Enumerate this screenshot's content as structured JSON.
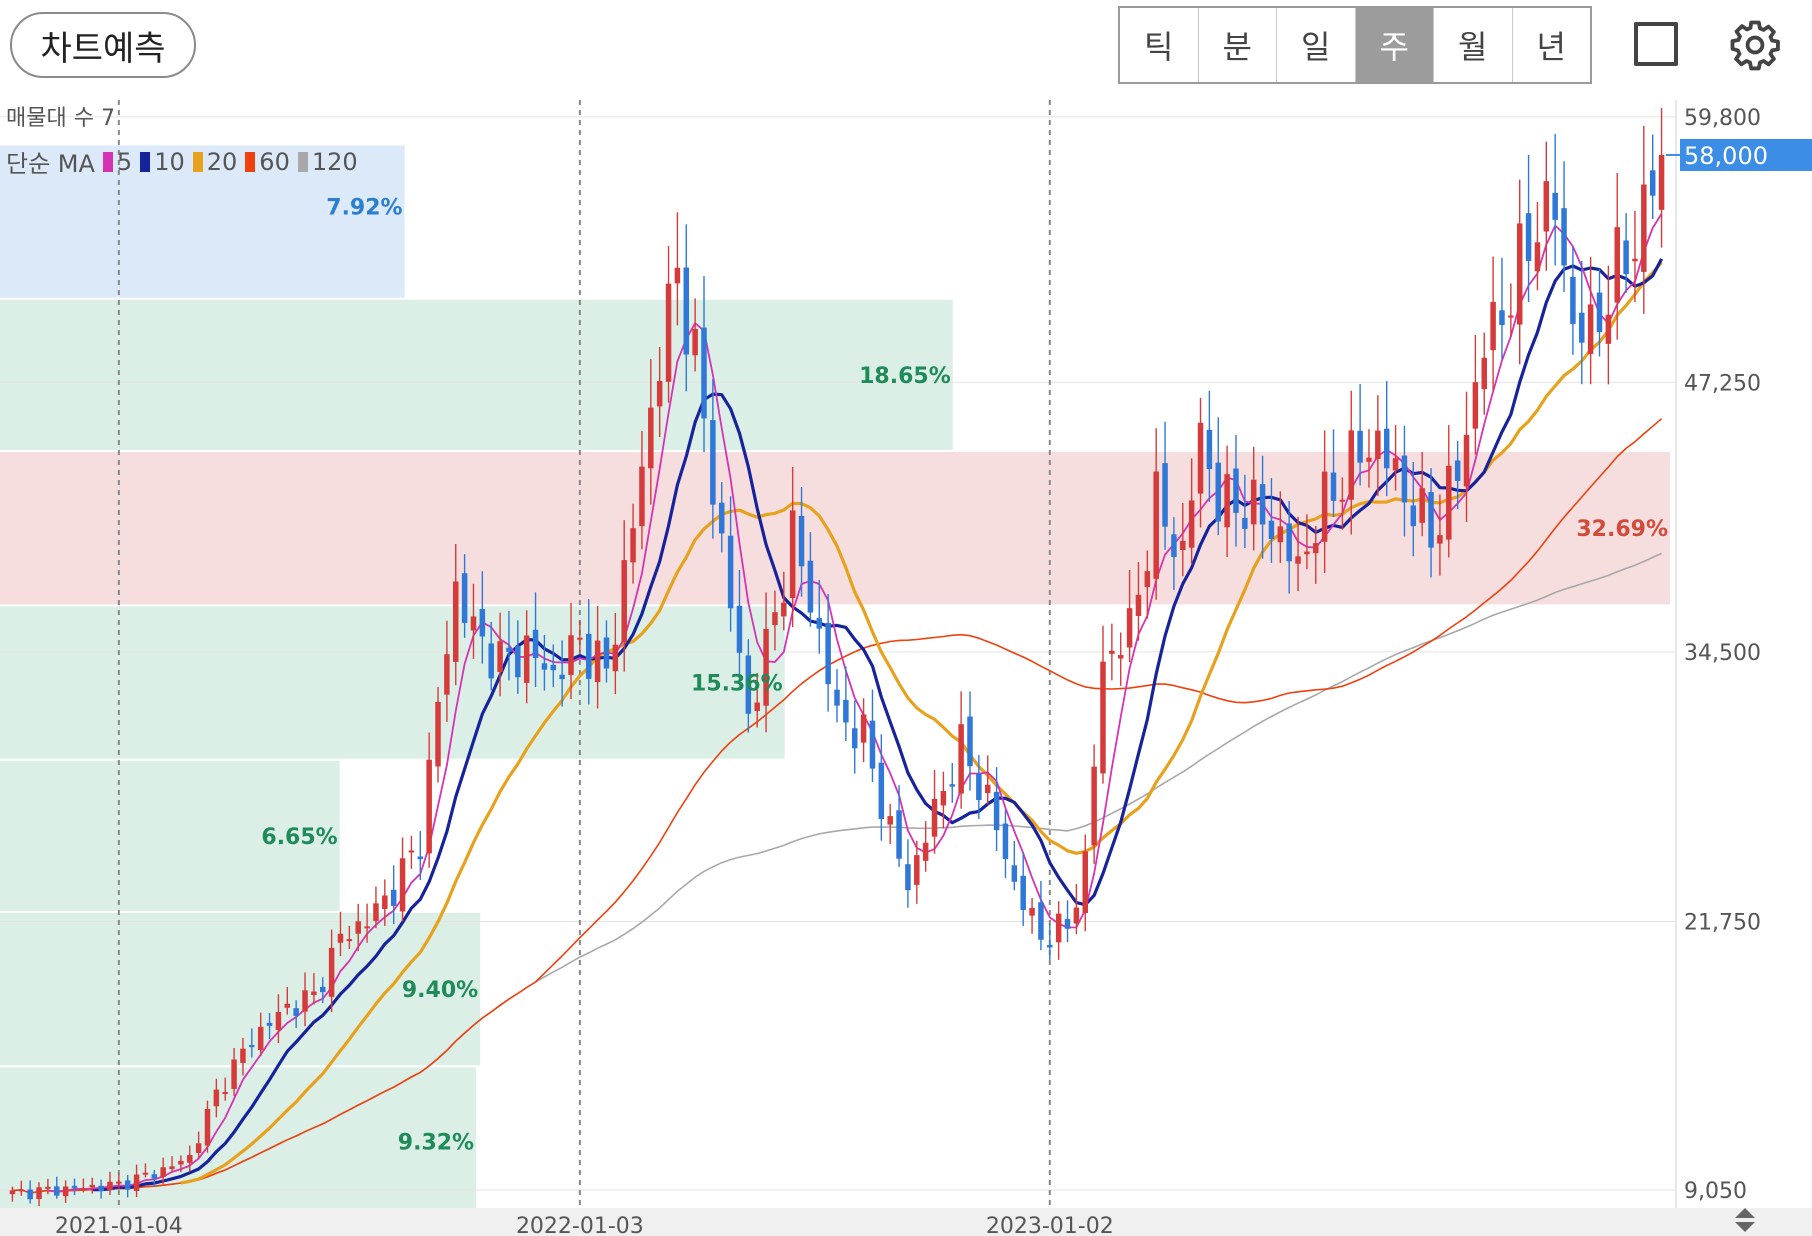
{
  "toolbar": {
    "predict_label": "차트예측",
    "periods": [
      "틱",
      "분",
      "일",
      "주",
      "월",
      "년"
    ],
    "active_period": "주",
    "icons": [
      "square-icon",
      "gear-icon"
    ]
  },
  "legend": {
    "volume_profile_label": "매물대 수 7",
    "ma_label": "단순 MA",
    "ma_periods": [
      {
        "period": "5",
        "color": "#d632b4"
      },
      {
        "period": "10",
        "color": "#17239b"
      },
      {
        "period": "20",
        "color": "#e8a11c"
      },
      {
        "period": "60",
        "color": "#f0400d"
      },
      {
        "period": "120",
        "color": "#a8a8a8"
      }
    ]
  },
  "colors": {
    "up": "#d63b3b",
    "down": "#2f78d8",
    "profile_normal": "#dcefe6",
    "profile_max": "#f7dede",
    "profile_current": "#dbe9f9",
    "price_tag": "#3b8de6"
  },
  "chart_data": {
    "type": "candlestick",
    "title": "",
    "y_ticks": [
      "59,800",
      "47,250",
      "34,500",
      "21,750",
      "9,050"
    ],
    "y_tick_values": [
      59800,
      47250,
      34500,
      21750,
      9050
    ],
    "ylim": [
      8200,
      60600
    ],
    "x_ticks": [
      "2021-01-04",
      "2022-01-03",
      "2023-01-02"
    ],
    "current_price": 58000,
    "current_price_label": "58,000",
    "grid": true,
    "volume_profile": [
      {
        "low": 7800,
        "high": 14900,
        "share": 9.32,
        "label": "9.32%",
        "highlight": "normal"
      },
      {
        "low": 14900,
        "high": 22200,
        "share": 9.4,
        "label": "9.40%",
        "highlight": "normal"
      },
      {
        "low": 22200,
        "high": 29400,
        "share": 6.65,
        "label": "6.65%",
        "highlight": "normal"
      },
      {
        "low": 29400,
        "high": 36700,
        "share": 15.36,
        "label": "15.36%",
        "highlight": "normal"
      },
      {
        "low": 36700,
        "high": 44000,
        "share": 32.69,
        "label": "32.69%",
        "highlight": "max"
      },
      {
        "low": 44000,
        "high": 51200,
        "share": 18.65,
        "label": "18.65%",
        "highlight": "normal"
      },
      {
        "low": 51200,
        "high": 58500,
        "share": 7.92,
        "label": "7.92%",
        "highlight": "current"
      }
    ],
    "close_anchors": [
      [
        0,
        8900
      ],
      [
        12,
        9300
      ],
      [
        17,
        10000
      ],
      [
        20,
        10600
      ],
      [
        23,
        13600
      ],
      [
        27,
        16200
      ],
      [
        31,
        17700
      ],
      [
        34,
        18200
      ],
      [
        37,
        21000
      ],
      [
        40,
        21800
      ],
      [
        43,
        23300
      ],
      [
        46,
        25600
      ],
      [
        48,
        32000
      ],
      [
        50,
        37500
      ],
      [
        52,
        35500
      ],
      [
        55,
        34000
      ],
      [
        58,
        34600
      ],
      [
        61,
        33400
      ],
      [
        64,
        35000
      ],
      [
        67,
        33500
      ],
      [
        70,
        40500
      ],
      [
        73,
        48500
      ],
      [
        75,
        52500
      ],
      [
        77,
        48300
      ],
      [
        80,
        39500
      ],
      [
        83,
        31500
      ],
      [
        85,
        34500
      ],
      [
        88,
        40000
      ],
      [
        90,
        37000
      ],
      [
        93,
        31500
      ],
      [
        96,
        30500
      ],
      [
        99,
        26000
      ],
      [
        101,
        23500
      ],
      [
        104,
        27000
      ],
      [
        107,
        30000
      ],
      [
        110,
        27500
      ],
      [
        113,
        23500
      ],
      [
        116,
        21000
      ],
      [
        119,
        21500
      ],
      [
        121,
        24500
      ],
      [
        123,
        34000
      ],
      [
        126,
        35500
      ],
      [
        129,
        41500
      ],
      [
        132,
        39000
      ],
      [
        134,
        45000
      ],
      [
        136,
        41500
      ],
      [
        139,
        41500
      ],
      [
        142,
        40500
      ],
      [
        145,
        38500
      ],
      [
        148,
        41500
      ],
      [
        151,
        43500
      ],
      [
        154,
        44500
      ],
      [
        157,
        42000
      ],
      [
        160,
        40000
      ],
      [
        163,
        43000
      ],
      [
        166,
        49000
      ],
      [
        169,
        51500
      ],
      [
        172,
        55000
      ],
      [
        174,
        55500
      ],
      [
        176,
        50000
      ],
      [
        178,
        49500
      ],
      [
        181,
        52500
      ],
      [
        183,
        54000
      ],
      [
        186,
        58000
      ]
    ],
    "ma_lines": [
      {
        "period": 5,
        "color": "#d632b4",
        "width": 1.8
      },
      {
        "period": 10,
        "color": "#17239b",
        "width": 3.2
      },
      {
        "period": 20,
        "color": "#e8a11c",
        "width": 3.2
      },
      {
        "period": 60,
        "color": "#f0400d",
        "width": 1.6
      },
      {
        "period": 120,
        "color": "#a8a8a8",
        "width": 1.6
      }
    ]
  }
}
